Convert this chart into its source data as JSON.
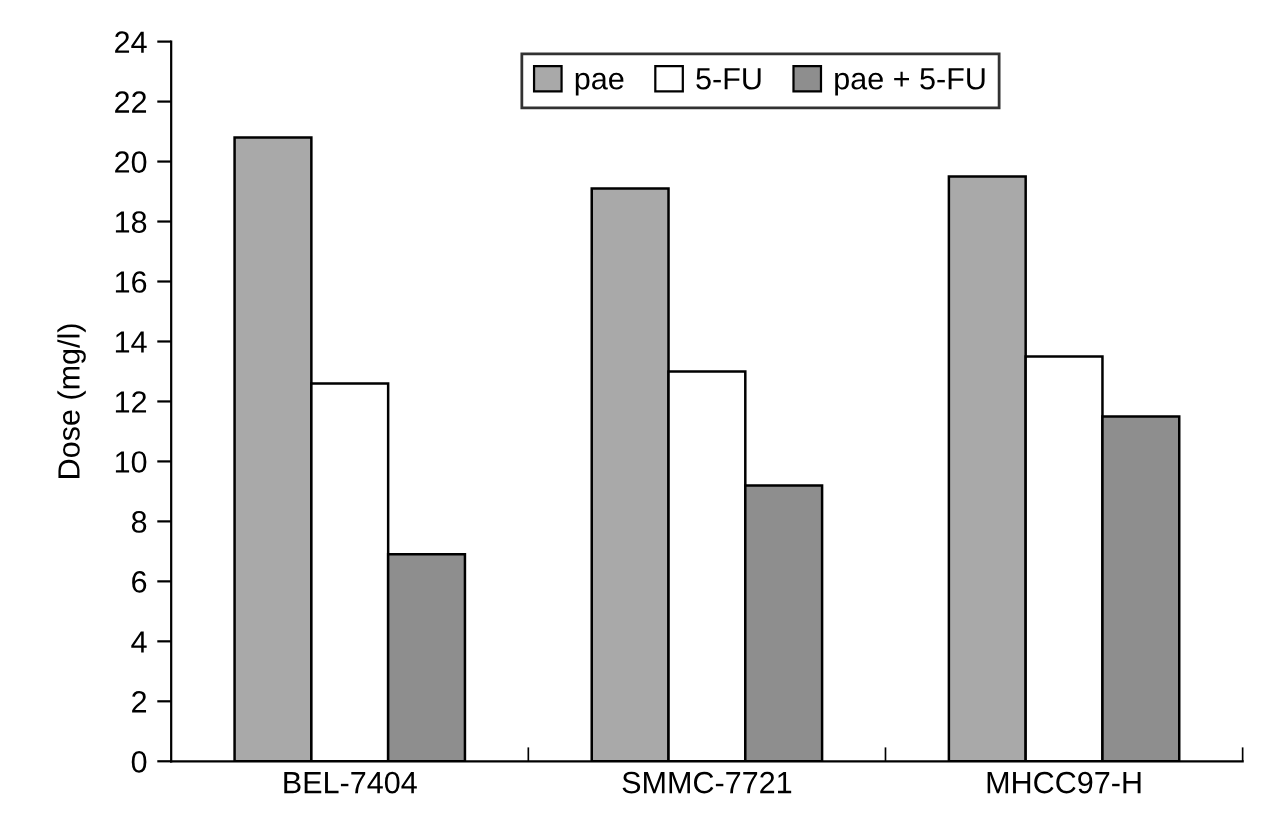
{
  "chart_data": {
    "type": "bar",
    "ylabel": "Dose (mg/l)",
    "categories": [
      "BEL-7404",
      "SMMC-7721",
      "MHCC97-H"
    ],
    "series": [
      {
        "name": "pae",
        "color": "#a9a9a9",
        "values": [
          20.8,
          19.1,
          19.5
        ]
      },
      {
        "name": "5-FU",
        "color": "#ffffff",
        "values": [
          12.6,
          13.0,
          13.5
        ]
      },
      {
        "name": "pae + 5-FU",
        "color": "#8e8e8e",
        "values": [
          6.9,
          9.2,
          11.5
        ]
      }
    ],
    "ylim": [
      0,
      24
    ],
    "yticks": [
      0,
      2,
      4,
      6,
      8,
      10,
      12,
      14,
      16,
      18,
      20,
      22,
      24
    ],
    "grid": false,
    "legend": "top"
  }
}
